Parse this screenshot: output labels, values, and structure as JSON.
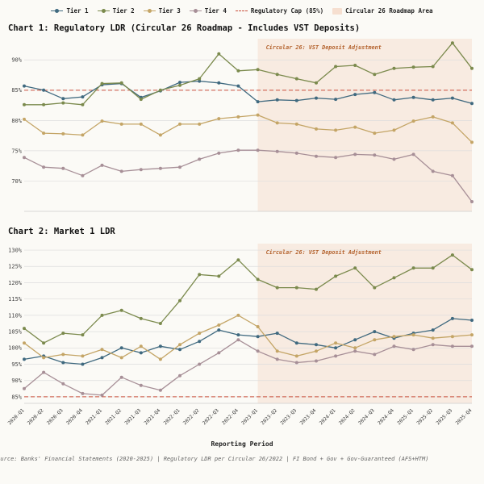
{
  "xlabel": "Reporting Period",
  "footer": "Source: Banks' Financial Statements (2020-2025) | Regulatory LDR per Circular 26/2022 | FI Bond + Gov + Gov-Guaranteed (AFS+HTM)",
  "legend": {
    "items": [
      {
        "label": "Tier 1",
        "type": "line",
        "color": "#3f697f"
      },
      {
        "label": "Tier 2",
        "type": "line",
        "color": "#7b8a4d"
      },
      {
        "label": "Tier 3",
        "type": "line",
        "color": "#c4a566"
      },
      {
        "label": "Tier 4",
        "type": "line",
        "color": "#a78f97"
      },
      {
        "label": "Regulatory Cap (85%)",
        "type": "dashed",
        "color": "#c9503c"
      },
      {
        "label": "Circular 26 Roadmap Area",
        "type": "area",
        "color": "#f6dfd0"
      }
    ]
  },
  "styles": {
    "cap_color": "#c9503c",
    "shade_color": "#f6dfd0",
    "annotation_color": "#b4632e",
    "grid_color": "#dddddd",
    "tick_color": "#444444"
  },
  "chart_data": [
    {
      "type": "line",
      "title": "Chart 1: Regulatory LDR (Circular 26 Roadmap - Includes VST Deposits)",
      "ylabel": "",
      "ylim": [
        65,
        93.5
      ],
      "yticks": [
        70,
        75,
        80,
        85,
        90
      ],
      "ytick_suffix": "%",
      "cap": 85,
      "shaded_from_index": 12,
      "annotation": "Circular 26: VST Deposit Adjustment",
      "categories": [
        "2020-Q1",
        "2020-Q2",
        "2020-Q3",
        "2020-Q4",
        "2021-Q1",
        "2021-Q2",
        "2021-Q3",
        "2021-Q4",
        "2022-Q1",
        "2022-Q2",
        "2022-Q3",
        "2022-Q4",
        "2023-Q1",
        "2023-Q2",
        "2023-Q3",
        "2023-Q4",
        "2024-Q1",
        "2024-Q2",
        "2024-Q3",
        "2024-Q4",
        "2025-Q1",
        "2025-Q2",
        "2025-Q3",
        "2025-Q4"
      ],
      "series": [
        {
          "name": "Tier 1",
          "color": "#3f697f",
          "values": [
            85.7,
            85.0,
            83.6,
            83.9,
            85.9,
            86.1,
            83.8,
            84.9,
            86.3,
            86.5,
            86.2,
            85.7,
            83.1,
            83.4,
            83.3,
            83.7,
            83.5,
            84.3,
            84.6,
            83.4,
            83.8,
            83.4,
            83.7,
            82.8
          ]
        },
        {
          "name": "Tier 2",
          "color": "#7b8a4d",
          "values": [
            82.6,
            82.6,
            82.9,
            82.6,
            86.1,
            86.2,
            83.5,
            85.0,
            85.8,
            86.9,
            91.0,
            88.2,
            88.4,
            87.6,
            86.9,
            86.2,
            88.9,
            89.1,
            87.6,
            88.6,
            88.8,
            88.9,
            92.8,
            88.6
          ]
        },
        {
          "name": "Tier 3",
          "color": "#c4a566",
          "values": [
            80.2,
            77.9,
            77.8,
            77.6,
            79.9,
            79.4,
            79.4,
            77.6,
            79.4,
            79.4,
            80.3,
            80.6,
            80.9,
            79.6,
            79.4,
            78.6,
            78.4,
            78.9,
            77.9,
            78.4,
            79.9,
            80.6,
            79.6,
            76.4
          ]
        },
        {
          "name": "Tier 4",
          "color": "#a78f97",
          "values": [
            73.9,
            72.3,
            72.1,
            70.9,
            72.6,
            71.6,
            71.9,
            72.1,
            72.3,
            73.6,
            74.6,
            75.1,
            75.1,
            74.9,
            74.6,
            74.1,
            73.9,
            74.4,
            74.3,
            73.6,
            74.4,
            71.6,
            70.9,
            66.6
          ]
        }
      ]
    },
    {
      "type": "line",
      "title": "Chart 2: Market 1 LDR",
      "ylabel": "",
      "ylim": [
        83,
        132
      ],
      "yticks": [
        85,
        90,
        95,
        100,
        105,
        110,
        115,
        120,
        125,
        130
      ],
      "ytick_suffix": "%",
      "cap": 85,
      "shaded_from_index": 12,
      "annotation": "Circular 26: VST Deposit Adjustment",
      "categories": [
        "2020-Q1",
        "2020-Q2",
        "2020-Q3",
        "2020-Q4",
        "2021-Q1",
        "2021-Q2",
        "2021-Q3",
        "2021-Q4",
        "2022-Q1",
        "2022-Q2",
        "2022-Q3",
        "2022-Q4",
        "2023-Q1",
        "2023-Q2",
        "2023-Q3",
        "2023-Q4",
        "2024-Q1",
        "2024-Q2",
        "2024-Q3",
        "2024-Q4",
        "2025-Q1",
        "2025-Q2",
        "2025-Q3",
        "2025-Q4"
      ],
      "series": [
        {
          "name": "Tier 1",
          "color": "#3f697f",
          "values": [
            96.5,
            97.5,
            95.5,
            95.0,
            97.0,
            100.0,
            98.5,
            100.5,
            99.5,
            102.0,
            105.5,
            104.0,
            103.5,
            104.5,
            101.5,
            101.0,
            100.0,
            102.5,
            105.0,
            103.0,
            104.5,
            105.5,
            109.0,
            108.5
          ]
        },
        {
          "name": "Tier 2",
          "color": "#7b8a4d",
          "values": [
            106.0,
            101.5,
            104.5,
            104.0,
            110.0,
            111.5,
            109.0,
            107.5,
            114.5,
            122.5,
            122.0,
            127.0,
            121.0,
            118.5,
            118.5,
            118.0,
            122.0,
            124.5,
            118.5,
            121.5,
            124.5,
            124.5,
            128.5,
            124.0
          ]
        },
        {
          "name": "Tier 3",
          "color": "#c4a566",
          "values": [
            101.5,
            97.0,
            98.0,
            97.5,
            99.5,
            97.0,
            100.5,
            96.5,
            101.0,
            104.5,
            107.0,
            110.0,
            106.5,
            99.0,
            97.5,
            99.0,
            101.5,
            100.0,
            102.5,
            103.5,
            104.0,
            103.0,
            103.5,
            104.0
          ]
        },
        {
          "name": "Tier 4",
          "color": "#a78f97",
          "values": [
            87.5,
            92.5,
            89.0,
            86.0,
            85.5,
            91.0,
            88.5,
            87.0,
            91.5,
            95.0,
            98.5,
            102.5,
            99.0,
            96.5,
            95.5,
            96.0,
            97.5,
            99.0,
            98.0,
            100.5,
            99.5,
            101.0,
            100.5,
            100.5
          ]
        }
      ]
    }
  ]
}
